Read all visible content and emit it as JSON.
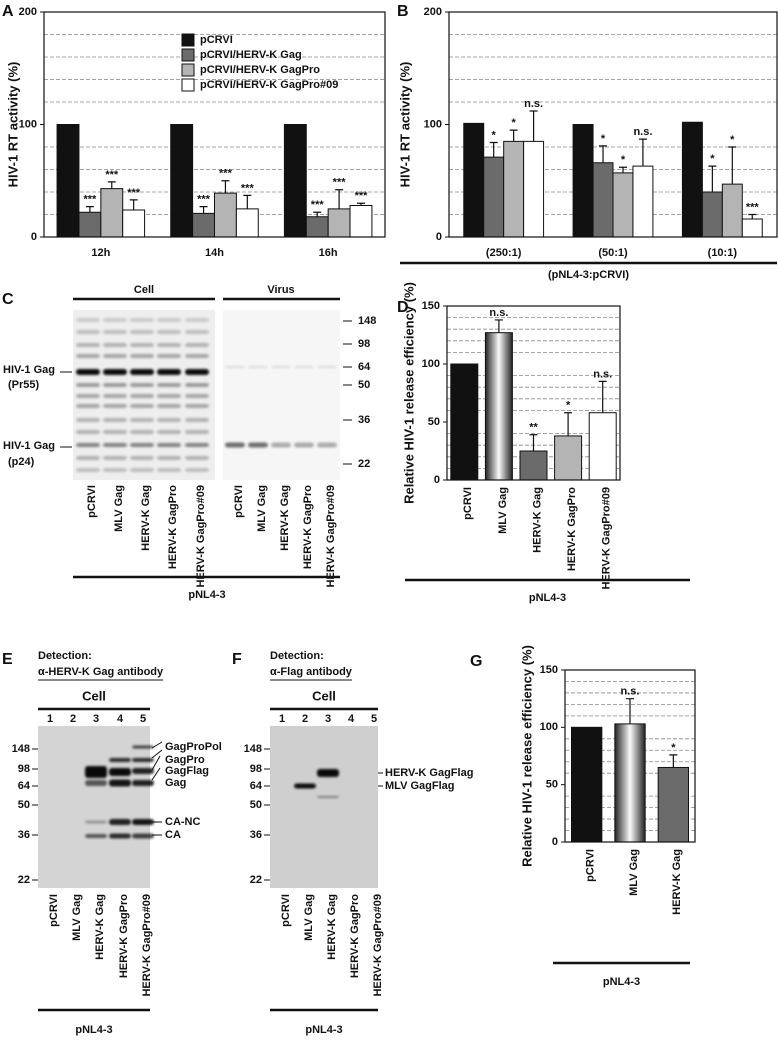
{
  "chart_data": [
    {
      "type": "bar",
      "panel": "A",
      "ylabel": "HIV-1 RT activity (%)",
      "categories": [
        "12h",
        "14h",
        "16h"
      ],
      "series": [
        {
          "name": "pCRVI",
          "color": "#111111",
          "values": [
            100,
            100,
            100
          ],
          "errors": [
            null,
            null,
            null
          ],
          "annotations": [
            null,
            null,
            null
          ]
        },
        {
          "name": "pCRVI/HERV-K Gag",
          "color": "#6b6b6b",
          "values": [
            22,
            21,
            18
          ],
          "errors": [
            5,
            6,
            4
          ],
          "annotations": [
            "***",
            "***",
            "***"
          ]
        },
        {
          "name": "pCRVI/HERV-K GagPro",
          "color": "#b4b4b4",
          "values": [
            43,
            39,
            25
          ],
          "errors": [
            6,
            11,
            17
          ],
          "annotations": [
            "***",
            "***",
            "***"
          ]
        },
        {
          "name": "pCRVI/HERV-K GagPro#09",
          "color": "#ffffff",
          "values": [
            24,
            25,
            28
          ],
          "errors": [
            9,
            12,
            2
          ],
          "annotations": [
            "***",
            "***",
            "***"
          ]
        }
      ],
      "ylim": [
        0,
        200
      ],
      "yticks": [
        0,
        100,
        200
      ],
      "grid_lines": [
        20,
        40,
        60,
        80,
        120,
        140,
        160,
        180
      ],
      "legend": "top-right"
    },
    {
      "type": "bar",
      "panel": "B",
      "ylabel": "HIV-1 RT activity (%)",
      "xlabel": "(pNL4-3:pCRVI)",
      "categories": [
        "(250:1)",
        "(50:1)",
        "(10:1)"
      ],
      "series": [
        {
          "name": "pCRVI",
          "color": "#111111",
          "values": [
            101,
            100,
            102
          ],
          "errors": [
            null,
            null,
            null
          ],
          "annotations": [
            null,
            null,
            null
          ]
        },
        {
          "name": "pCRVI/HERV-K Gag",
          "color": "#6b6b6b",
          "values": [
            71,
            66,
            40
          ],
          "errors": [
            13,
            15,
            23
          ],
          "annotations": [
            "*",
            "*",
            "*"
          ]
        },
        {
          "name": "pCRVI/HERV-K GagPro",
          "color": "#b4b4b4",
          "values": [
            85,
            57,
            47
          ],
          "errors": [
            10,
            5,
            33
          ],
          "annotations": [
            "*",
            "*",
            "*"
          ]
        },
        {
          "name": "pCRVI/HERV-K GagPro#09",
          "color": "#ffffff",
          "values": [
            85,
            63,
            16
          ],
          "errors": [
            27,
            24,
            4
          ],
          "annotations": [
            "n.s.",
            "n.s.",
            "***"
          ]
        }
      ],
      "ylim": [
        0,
        200
      ],
      "yticks": [
        0,
        100,
        200
      ],
      "grid_lines": [
        20,
        40,
        60,
        80,
        120,
        140,
        160,
        180
      ],
      "legend": "none"
    },
    {
      "type": "bar",
      "panel": "D",
      "ylabel": "Relative HIV-1 release efficiency (%)",
      "xlabel": "pNL4-3",
      "categories": [
        "pCRVI",
        "MLV Gag",
        "HERV-K Gag",
        "HERV-K GagPro",
        "HERV-K GagPro#09"
      ],
      "values": [
        100,
        127,
        25,
        38,
        58
      ],
      "errors": [
        null,
        11,
        14,
        20,
        27
      ],
      "annotations": [
        null,
        "n.s.",
        "**",
        "*",
        "n.s."
      ],
      "colors": [
        "#111111",
        "#888888",
        "#6b6b6b",
        "#b4b4b4",
        "#ffffff"
      ],
      "fill_style": [
        "solid",
        "gradient",
        "solid",
        "solid",
        "solid"
      ],
      "ylim": [
        0,
        150
      ],
      "yticks": [
        0,
        50,
        100,
        150
      ],
      "grid_lines": [
        10,
        20,
        30,
        40,
        60,
        70,
        80,
        90,
        110,
        120,
        130,
        140
      ]
    },
    {
      "type": "bar",
      "panel": "G",
      "ylabel": "Relative HIV-1 release efficiency (%)",
      "xlabel": "pNL4-3",
      "categories": [
        "pCRVI",
        "MLV Gag",
        "HERV-K Gag"
      ],
      "values": [
        100,
        103,
        65
      ],
      "errors": [
        null,
        22,
        11
      ],
      "annotations": [
        null,
        "n.s.",
        "*"
      ],
      "colors": [
        "#111111",
        "#888888",
        "#6b6b6b"
      ],
      "fill_style": [
        "solid",
        "gradient",
        "solid"
      ],
      "ylim": [
        0,
        150
      ],
      "yticks": [
        0,
        50,
        100,
        150
      ],
      "grid_lines": [
        10,
        20,
        30,
        40,
        60,
        70,
        80,
        90,
        110,
        120,
        130,
        140
      ]
    }
  ],
  "blots": {
    "C": {
      "panel": "C",
      "groups": [
        "Cell",
        "Virus"
      ],
      "markers": [
        148,
        98,
        64,
        50,
        36,
        22
      ],
      "band_labels": [
        [
          "HIV-1 Gag",
          "(Pr55)"
        ],
        [
          "HIV-1 Gag",
          "(p24)"
        ]
      ],
      "lanes": [
        "pCRVI",
        "MLV Gag",
        "HERV-K Gag",
        "HERV-K GagPro",
        "HERV-K GagPro#09"
      ],
      "xlabel": "pNL4-3"
    },
    "E": {
      "panel": "E",
      "detection": "Detection:",
      "antibody": "α-HERV-K Gag antibody",
      "group": "Cell",
      "lane_numbers": [
        1,
        2,
        3,
        4,
        5
      ],
      "markers": [
        148,
        98,
        64,
        50,
        36,
        22
      ],
      "band_labels": [
        "GagProPol",
        "GagPro",
        "GagFlag",
        "Gag",
        "CA-NC",
        "CA"
      ],
      "lanes": [
        "pCRVI",
        "MLV Gag",
        "HERV-K Gag",
        "HERV-K GagPro",
        "HERV-K GagPro#09"
      ],
      "xlabel": "pNL4-3"
    },
    "F": {
      "panel": "F",
      "detection": "Detection:",
      "antibody": "α-Flag antibody",
      "group": "Cell",
      "lane_numbers": [
        1,
        2,
        3,
        4,
        5
      ],
      "markers": [
        148,
        98,
        64,
        50,
        36,
        22
      ],
      "band_labels": [
        "HERV-K GagFlag",
        "MLV GagFlag"
      ],
      "lanes": [
        "pCRVI",
        "MLV Gag",
        "HERV-K Gag",
        "HERV-K GagPro",
        "HERV-K GagPro#09"
      ],
      "xlabel": "pNL4-3"
    }
  }
}
